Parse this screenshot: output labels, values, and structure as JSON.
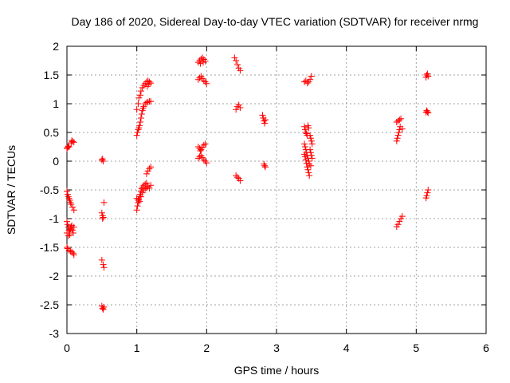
{
  "chart_data": {
    "type": "scatter",
    "title": "Day 186 of 2020, Sidereal Day-to-day VTEC variation (SDTVAR) for receiver nrmg",
    "xlabel": "GPS time / hours",
    "ylabel": "SDTVAR / TECUs",
    "xlim": [
      0,
      6
    ],
    "ylim": [
      -3,
      2
    ],
    "xticks": [
      0,
      1,
      2,
      3,
      4,
      5,
      6
    ],
    "yticks": [
      -3,
      -2.5,
      -2,
      -1.5,
      -1,
      -0.5,
      0,
      0.5,
      1,
      1.5,
      2
    ],
    "xtick_labels": [
      "0",
      "1",
      "2",
      "3",
      "4",
      "5",
      "6"
    ],
    "ytick_labels": [
      "-3",
      "-2.5",
      "-2",
      "-1.5",
      "-1",
      "-0.5",
      "0",
      "0.5",
      "1",
      "1.5",
      "2"
    ],
    "grid": true,
    "marker": "+",
    "color": "#ff0000",
    "series": [
      {
        "name": "SDTVAR",
        "points": [
          [
            0.0,
            0.22
          ],
          [
            0.01,
            0.24
          ],
          [
            0.02,
            0.26
          ],
          [
            0.03,
            0.25
          ],
          [
            0.06,
            0.32
          ],
          [
            0.07,
            0.36
          ],
          [
            0.08,
            0.34
          ],
          [
            0.1,
            0.33
          ],
          [
            0.0,
            -0.52
          ],
          [
            0.01,
            -0.58
          ],
          [
            0.02,
            -0.62
          ],
          [
            0.03,
            -0.65
          ],
          [
            0.04,
            -0.68
          ],
          [
            0.05,
            -0.72
          ],
          [
            0.06,
            -0.75
          ],
          [
            0.08,
            -0.8
          ],
          [
            0.1,
            -0.85
          ],
          [
            0.0,
            -1.05
          ],
          [
            0.01,
            -1.1
          ],
          [
            0.02,
            -1.15
          ],
          [
            0.03,
            -1.2
          ],
          [
            0.04,
            -1.22
          ],
          [
            0.05,
            -1.18
          ],
          [
            0.06,
            -1.14
          ],
          [
            0.07,
            -1.12
          ],
          [
            0.08,
            -1.2
          ],
          [
            0.09,
            -1.25
          ],
          [
            0.1,
            -1.15
          ],
          [
            0.0,
            -1.25
          ],
          [
            0.02,
            -1.3
          ],
          [
            0.04,
            -1.28
          ],
          [
            0.0,
            -1.5
          ],
          [
            0.01,
            -1.52
          ],
          [
            0.03,
            -1.55
          ],
          [
            0.05,
            -1.57
          ],
          [
            0.07,
            -1.58
          ],
          [
            0.09,
            -1.6
          ],
          [
            0.1,
            -1.63
          ],
          [
            0.5,
            0.02
          ],
          [
            0.51,
            0.04
          ],
          [
            0.52,
            0.0
          ],
          [
            0.5,
            -0.9
          ],
          [
            0.51,
            -0.95
          ],
          [
            0.51,
            -1.0
          ],
          [
            0.52,
            -0.98
          ],
          [
            0.53,
            -0.72
          ],
          [
            0.5,
            -1.72
          ],
          [
            0.52,
            -1.8
          ],
          [
            0.53,
            -1.85
          ],
          [
            0.5,
            -2.52
          ],
          [
            0.51,
            -2.56
          ],
          [
            0.52,
            -2.58
          ],
          [
            0.53,
            -2.54
          ],
          [
            1.0,
            0.45
          ],
          [
            1.01,
            0.5
          ],
          [
            1.02,
            0.55
          ],
          [
            1.03,
            0.58
          ],
          [
            1.04,
            0.62
          ],
          [
            1.05,
            0.68
          ],
          [
            1.06,
            0.75
          ],
          [
            1.07,
            0.82
          ],
          [
            1.08,
            0.88
          ],
          [
            1.09,
            0.92
          ],
          [
            1.1,
            0.95
          ],
          [
            1.12,
            1.0
          ],
          [
            1.14,
            1.02
          ],
          [
            1.16,
            1.03
          ],
          [
            1.18,
            1.04
          ],
          [
            1.2,
            1.04
          ],
          [
            1.0,
            0.9
          ],
          [
            1.02,
            1.0
          ],
          [
            1.03,
            1.1
          ],
          [
            1.05,
            1.15
          ],
          [
            1.06,
            1.22
          ],
          [
            1.08,
            1.28
          ],
          [
            1.1,
            1.32
          ],
          [
            1.12,
            1.35
          ],
          [
            1.14,
            1.38
          ],
          [
            1.16,
            1.4
          ],
          [
            1.18,
            1.38
          ],
          [
            1.2,
            1.36
          ],
          [
            1.15,
            1.3
          ],
          [
            1.17,
            1.34
          ],
          [
            1.0,
            -0.85
          ],
          [
            1.01,
            -0.78
          ],
          [
            1.02,
            -0.72
          ],
          [
            1.03,
            -0.66
          ],
          [
            1.04,
            -0.62
          ],
          [
            1.05,
            -0.58
          ],
          [
            1.06,
            -0.52
          ],
          [
            1.07,
            -0.48
          ],
          [
            1.08,
            -0.45
          ],
          [
            1.1,
            -0.42
          ],
          [
            1.12,
            -0.4
          ],
          [
            1.14,
            -0.38
          ],
          [
            1.0,
            -0.65
          ],
          [
            1.02,
            -0.68
          ],
          [
            1.04,
            -0.7
          ],
          [
            1.06,
            -0.62
          ],
          [
            1.08,
            -0.55
          ],
          [
            1.1,
            -0.5
          ],
          [
            1.12,
            -0.48
          ],
          [
            1.14,
            -0.46
          ],
          [
            1.16,
            -0.44
          ],
          [
            1.18,
            -0.47
          ],
          [
            1.2,
            -0.42
          ],
          [
            1.14,
            -0.22
          ],
          [
            1.16,
            -0.17
          ],
          [
            1.18,
            -0.13
          ],
          [
            1.2,
            -0.1
          ],
          [
            1.88,
            1.72
          ],
          [
            1.9,
            1.75
          ],
          [
            1.92,
            1.78
          ],
          [
            1.94,
            1.8
          ],
          [
            1.96,
            1.77
          ],
          [
            1.98,
            1.74
          ],
          [
            1.91,
            1.7
          ],
          [
            1.95,
            1.72
          ],
          [
            1.88,
            1.42
          ],
          [
            1.9,
            1.45
          ],
          [
            1.92,
            1.48
          ],
          [
            1.94,
            1.44
          ],
          [
            1.96,
            1.4
          ],
          [
            1.98,
            1.38
          ],
          [
            2.0,
            1.35
          ],
          [
            1.88,
            0.25
          ],
          [
            1.9,
            0.22
          ],
          [
            1.92,
            0.2
          ],
          [
            1.94,
            0.24
          ],
          [
            1.96,
            0.28
          ],
          [
            1.98,
            0.3
          ],
          [
            1.91,
            0.18
          ],
          [
            1.88,
            0.05
          ],
          [
            1.9,
            0.08
          ],
          [
            1.92,
            0.1
          ],
          [
            1.94,
            0.06
          ],
          [
            1.96,
            0.02
          ],
          [
            1.98,
            0.0
          ],
          [
            2.0,
            -0.03
          ],
          [
            2.4,
            1.8
          ],
          [
            2.42,
            1.75
          ],
          [
            2.44,
            1.68
          ],
          [
            2.46,
            1.62
          ],
          [
            2.48,
            1.58
          ],
          [
            2.42,
            0.9
          ],
          [
            2.44,
            0.95
          ],
          [
            2.46,
            0.98
          ],
          [
            2.48,
            0.93
          ],
          [
            2.42,
            -0.25
          ],
          [
            2.44,
            -0.28
          ],
          [
            2.46,
            -0.3
          ],
          [
            2.48,
            -0.34
          ],
          [
            2.8,
            0.8
          ],
          [
            2.81,
            0.75
          ],
          [
            2.82,
            0.7
          ],
          [
            2.83,
            0.66
          ],
          [
            2.84,
            0.72
          ],
          [
            2.82,
            -0.05
          ],
          [
            2.83,
            -0.08
          ],
          [
            2.84,
            -0.1
          ],
          [
            3.4,
            1.38
          ],
          [
            3.42,
            1.4
          ],
          [
            3.44,
            1.36
          ],
          [
            3.46,
            1.38
          ],
          [
            3.48,
            1.42
          ],
          [
            3.5,
            1.48
          ],
          [
            3.4,
            0.6
          ],
          [
            3.41,
            0.55
          ],
          [
            3.42,
            0.5
          ],
          [
            3.43,
            0.48
          ],
          [
            3.44,
            0.45
          ],
          [
            3.45,
            0.62
          ],
          [
            3.46,
            0.58
          ],
          [
            3.4,
            0.3
          ],
          [
            3.41,
            0.25
          ],
          [
            3.42,
            0.2
          ],
          [
            3.43,
            0.15
          ],
          [
            3.44,
            0.1
          ],
          [
            3.45,
            0.05
          ],
          [
            3.46,
            0.0
          ],
          [
            3.47,
            -0.05
          ],
          [
            3.4,
            0.12
          ],
          [
            3.41,
            0.08
          ],
          [
            3.42,
            0.02
          ],
          [
            3.43,
            -0.04
          ],
          [
            3.44,
            -0.1
          ],
          [
            3.45,
            -0.15
          ],
          [
            3.46,
            -0.2
          ],
          [
            3.47,
            -0.25
          ],
          [
            3.48,
            0.45
          ],
          [
            3.49,
            0.4
          ],
          [
            3.5,
            0.35
          ],
          [
            3.51,
            0.3
          ],
          [
            3.48,
            0.2
          ],
          [
            3.49,
            0.15
          ],
          [
            3.5,
            0.1
          ],
          [
            3.51,
            0.05
          ],
          [
            3.49,
            -0.08
          ],
          [
            4.72,
            0.35
          ],
          [
            4.73,
            0.4
          ],
          [
            4.74,
            0.45
          ],
          [
            4.75,
            0.5
          ],
          [
            4.76,
            0.55
          ],
          [
            4.77,
            0.6
          ],
          [
            4.72,
            0.68
          ],
          [
            4.74,
            0.7
          ],
          [
            4.76,
            0.72
          ],
          [
            4.78,
            0.74
          ],
          [
            4.8,
            0.56
          ],
          [
            4.72,
            -1.14
          ],
          [
            4.74,
            -1.1
          ],
          [
            4.76,
            -1.05
          ],
          [
            4.78,
            -1.0
          ],
          [
            4.8,
            -0.96
          ],
          [
            5.14,
            1.46
          ],
          [
            5.15,
            1.5
          ],
          [
            5.16,
            1.52
          ],
          [
            5.17,
            1.48
          ],
          [
            5.14,
            0.85
          ],
          [
            5.15,
            0.88
          ],
          [
            5.16,
            0.86
          ],
          [
            5.17,
            0.84
          ],
          [
            5.14,
            -0.64
          ],
          [
            5.15,
            -0.6
          ],
          [
            5.16,
            -0.55
          ],
          [
            5.17,
            -0.5
          ]
        ]
      }
    ]
  }
}
